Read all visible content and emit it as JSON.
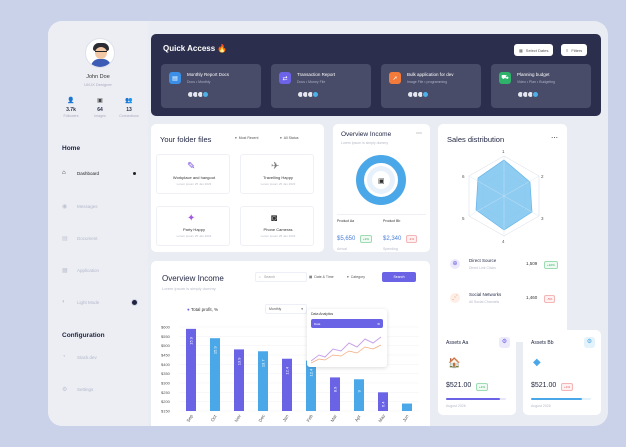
{
  "profile": {
    "name": "John Doe",
    "role": "UI/UX Designer",
    "stats": [
      {
        "icon": "user-icon",
        "value": "3.7k",
        "label": "Followers"
      },
      {
        "icon": "image-icon",
        "value": "64",
        "label": "Images"
      },
      {
        "icon": "users-icon",
        "value": "13",
        "label": "Connections"
      }
    ]
  },
  "nav": {
    "home_title": "Home",
    "items": [
      {
        "icon": "home-icon",
        "label": "Dashboard"
      },
      {
        "icon": "message-icon",
        "label": "Messages"
      },
      {
        "icon": "document-icon",
        "label": "Document"
      },
      {
        "icon": "grid-icon",
        "label": "Application"
      },
      {
        "icon": "moon-icon",
        "label": "Light Mode"
      }
    ],
    "config_title": "Configuration",
    "config_items": [
      {
        "icon": "clock-icon",
        "label": "Stack.dev"
      },
      {
        "icon": "gear-icon",
        "label": "Settings"
      }
    ]
  },
  "quick_access": {
    "title": "Quick Access 🔥",
    "select_dates": "Select Dates",
    "filters": "Filters",
    "cards": [
      {
        "name": "Monthly Report Docs",
        "sub": "Docs • Monthly",
        "icon": "doc-icon",
        "color": "#3b8fe6"
      },
      {
        "name": "Transaction Report",
        "sub": "Docs • Money File",
        "icon": "transaction-icon",
        "color": "#6d63e8"
      },
      {
        "name": "Bulk application for dev",
        "sub": "Image File • programming",
        "icon": "rocket-icon",
        "color": "#f27a3a"
      },
      {
        "name": "Planning budget",
        "sub": "Video • Plan • Budgeting",
        "icon": "cart-icon",
        "color": "#2fb36a"
      }
    ]
  },
  "folders": {
    "title": "Your folder files",
    "sort": "Most Recent",
    "status": "All Status",
    "items": [
      {
        "name": "Workplace and hangout",
        "size": "Lorem ipsum 25 Jan 2023",
        "icon": "🎨"
      },
      {
        "name": "Travelling Happy",
        "size": "Lorem ipsum 25 Jan 2023",
        "icon": "✈"
      },
      {
        "name": "Party Happy",
        "size": "Lorem ipsum 25 Jan 2023",
        "icon": "🎉"
      },
      {
        "name": "Phone Cameras",
        "size": "Lorem ipsum 25 Jan 2023",
        "icon": "📷"
      }
    ]
  },
  "overview_small": {
    "title": "Overview Income",
    "subtitle": "Lorem ipsum is simply dummy",
    "product_a": {
      "name": "Product Aa",
      "value": "$5,650",
      "badge": "+1%",
      "note": "Arrival"
    },
    "product_b": {
      "name": "Product Bb",
      "value": "$2,340",
      "badge": "-1%",
      "note": "Spending"
    }
  },
  "sales": {
    "title": "Sales distribution",
    "ticks": [
      "1",
      "2",
      "3",
      "4",
      "5",
      "6"
    ],
    "rows": [
      {
        "name": "Direct Source",
        "sub": "Direct Link Clicks",
        "value": "1,509",
        "badge": "+10%",
        "up": true
      },
      {
        "name": "Social Networks",
        "sub": "All Social Channels",
        "value": "1,460",
        "badge": "-5%",
        "up": false
      }
    ]
  },
  "overview_income": {
    "title": "Overview Income",
    "subtitle": "Lorem ipsum is simply dummy",
    "search_placeholder": "Search",
    "date_label": "Date & Time",
    "category_label": "Category",
    "search_button": "Search",
    "legend": "Total profit, %",
    "period": "Monthly",
    "mini_title": "Data Analytics",
    "mini_select": "Data"
  },
  "chart_data": {
    "type": "bar",
    "categories": [
      "Sep",
      "Oct",
      "Nov",
      "Dec",
      "Jan",
      "Feb",
      "Mar",
      "Apr",
      "May",
      "Jun"
    ],
    "values": [
      15.9,
      15.9,
      13.9,
      13.7,
      12.4,
      12.4,
      8.9,
      9.0,
      6.4,
      3.4
    ],
    "yticks": [
      "$600",
      "$550",
      "$500",
      "$450",
      "$400",
      "$350",
      "$300",
      "$250",
      "$200",
      "$150"
    ],
    "ylim": [
      150,
      600
    ],
    "bar_values_usd": [
      590,
      540,
      480,
      470,
      430,
      420,
      330,
      320,
      250,
      190
    ],
    "colors": [
      "#6a63e6",
      "#4ba8e8"
    ]
  },
  "assets": [
    {
      "name": "Assets Aa",
      "value": "$521.00",
      "badge": "+1%",
      "date": "August 2026",
      "up": true
    },
    {
      "name": "Assets Bb",
      "value": "$521.00",
      "badge": "+1%",
      "date": "August 2026",
      "up": false
    }
  ]
}
